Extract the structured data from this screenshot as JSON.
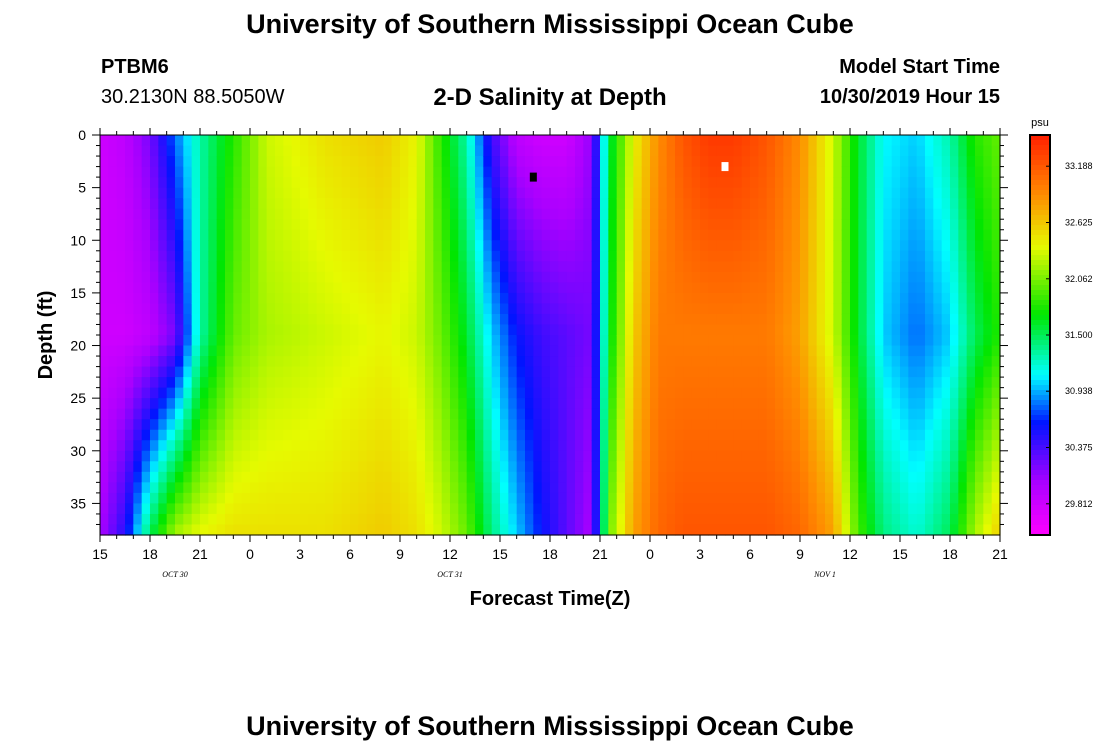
{
  "page_title": "University of Southern Mississippi Ocean Cube",
  "footer_title": "University of Southern Mississippi Ocean Cube",
  "station": {
    "id": "PTBM6",
    "coords": "30.2130N 88.5050W"
  },
  "plot_title": "2-D Salinity at Depth",
  "model": {
    "label": "Model Start Time",
    "time": "10/30/2019 Hour 15"
  },
  "chart_data": {
    "type": "heatmap",
    "title": "2-D Salinity at Depth",
    "xlabel": "Forecast Time(Z)",
    "ylabel": "Depth (ft)",
    "x_tick_labels": [
      "15",
      "18",
      "21",
      "0",
      "3",
      "6",
      "9",
      "12",
      "15",
      "18",
      "21",
      "0",
      "3",
      "6",
      "9",
      "12",
      "15",
      "18",
      "21"
    ],
    "x_date_labels": [
      {
        "text": "OCT 30",
        "at_tick": 1.5
      },
      {
        "text": "OCT 31",
        "at_tick": 7
      },
      {
        "text": "NOV 1",
        "at_tick": 14.5
      }
    ],
    "x_range_hours": [
      0,
      54
    ],
    "y_tick_labels": [
      "0",
      "5",
      "10",
      "15",
      "20",
      "25",
      "30",
      "35"
    ],
    "y_tick_values": [
      0,
      5,
      10,
      15,
      20,
      25,
      30,
      35
    ],
    "ylim": [
      0,
      38
    ],
    "colorbar": {
      "unit": "psu",
      "tick_labels": [
        "33.188",
        "32.625",
        "32.062",
        "31.500",
        "30.938",
        "30.375",
        "29.812"
      ],
      "range": [
        29.5,
        33.5
      ]
    },
    "markers": [
      {
        "label": "min",
        "hour": 26,
        "depth_ft": 4,
        "color": "#000000"
      },
      {
        "label": "max",
        "hour": 37.5,
        "depth_ft": 3,
        "color": "#ffffff"
      }
    ],
    "profiles": {
      "hours": [
        0,
        1.5,
        3,
        4.5,
        6,
        8,
        10,
        13.5,
        17,
        19,
        20.5,
        22,
        23.5,
        25,
        26.5,
        28,
        29.5,
        30.5,
        32,
        33.5,
        35,
        36.5,
        38,
        40,
        42,
        44,
        45.5,
        47,
        49,
        51,
        52.5,
        54
      ],
      "surface": [
        29.8,
        29.9,
        30.2,
        30.8,
        31.3,
        31.8,
        32.3,
        32.5,
        32.6,
        32.4,
        31.8,
        31.3,
        30.4,
        29.9,
        29.8,
        29.8,
        30.1,
        31.5,
        32.4,
        32.9,
        33.2,
        33.35,
        33.35,
        33.2,
        32.9,
        32.3,
        31.6,
        31.1,
        31.0,
        31.3,
        31.8,
        32.0
      ],
      "mid": [
        29.8,
        29.8,
        29.9,
        30.2,
        31.3,
        32.0,
        32.2,
        32.3,
        32.4,
        32.3,
        32.0,
        31.6,
        31.0,
        30.6,
        30.4,
        30.3,
        30.2,
        31.6,
        32.6,
        33.0,
        33.0,
        33.0,
        33.0,
        33.0,
        32.8,
        32.3,
        31.6,
        31.0,
        30.8,
        31.0,
        31.5,
        31.8
      ],
      "deep": [
        30.0,
        30.5,
        31.5,
        32.2,
        32.4,
        32.5,
        32.5,
        32.5,
        32.6,
        32.5,
        32.3,
        32.0,
        31.4,
        31.0,
        30.6,
        30.3,
        30.0,
        32.0,
        32.8,
        33.1,
        33.2,
        33.2,
        33.2,
        33.2,
        33.1,
        32.8,
        31.9,
        31.4,
        31.2,
        31.5,
        32.2,
        32.6
      ]
    }
  }
}
